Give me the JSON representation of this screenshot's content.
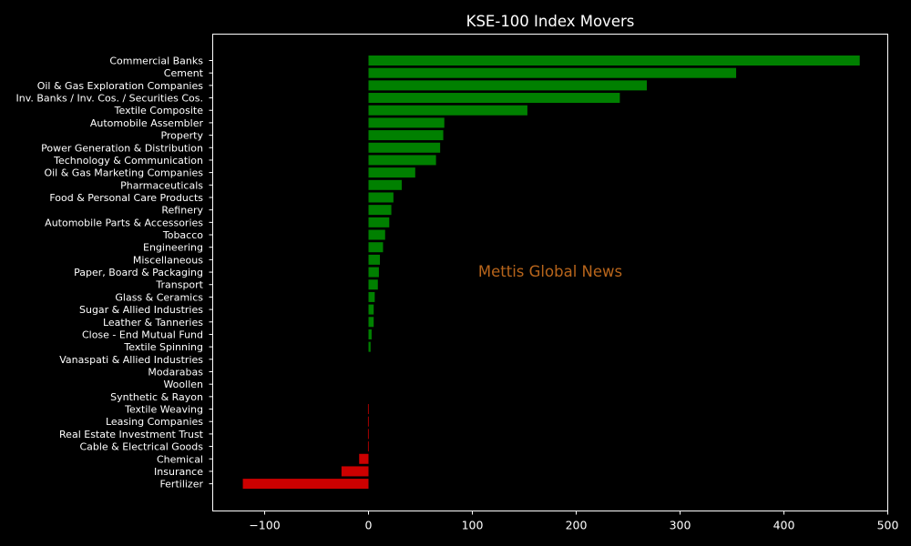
{
  "chart_data": {
    "type": "bar",
    "orientation": "horizontal",
    "title": "KSE-100 Index Movers",
    "xlabel": "",
    "ylabel": "",
    "xlim": [
      -150,
      500
    ],
    "xticks": [
      -100,
      0,
      100,
      200,
      300,
      400,
      500
    ],
    "xtick_labels": [
      "−100",
      "0",
      "100",
      "200",
      "300",
      "400",
      "500"
    ],
    "grid": false,
    "background": "#000000",
    "axis_color": "#ffffff",
    "positive_color": "#008000",
    "negative_color": "#cc0000",
    "watermark": {
      "text": "Mettis Global News",
      "color": "#b8651b"
    },
    "categories": [
      "Commercial Banks",
      "Cement",
      "Oil & Gas Exploration Companies",
      "Inv. Banks / Inv. Cos. / Securities Cos.",
      "Textile Composite",
      "Automobile Assembler",
      "Property",
      "Power Generation & Distribution",
      "Technology & Communication",
      "Oil & Gas Marketing Companies",
      "Pharmaceuticals",
      "Food & Personal Care Products",
      "Refinery",
      "Automobile Parts & Accessories",
      "Tobacco",
      "Engineering",
      "Miscellaneous",
      "Paper, Board & Packaging",
      "Transport",
      "Glass & Ceramics",
      "Sugar & Allied Industries",
      "Leather & Tanneries",
      "Close - End Mutual Fund",
      "Textile Spinning",
      "Vanaspati & Allied Industries",
      "Modarabas",
      "Woollen",
      "Synthetic & Rayon",
      "Textile Weaving",
      "Leasing Companies",
      "Real Estate Investment Trust",
      "Cable & Electrical Goods",
      "Chemical",
      "Insurance",
      "Fertilizer"
    ],
    "values": [
      473,
      354,
      268,
      242,
      153,
      73,
      72,
      69,
      65,
      45,
      32,
      24,
      22,
      20,
      16,
      14,
      11,
      10,
      9,
      6,
      5,
      5,
      3,
      2,
      0,
      0,
      0,
      0,
      -0.5,
      -0.5,
      -0.5,
      -0.5,
      -9,
      -26,
      -121
    ]
  }
}
